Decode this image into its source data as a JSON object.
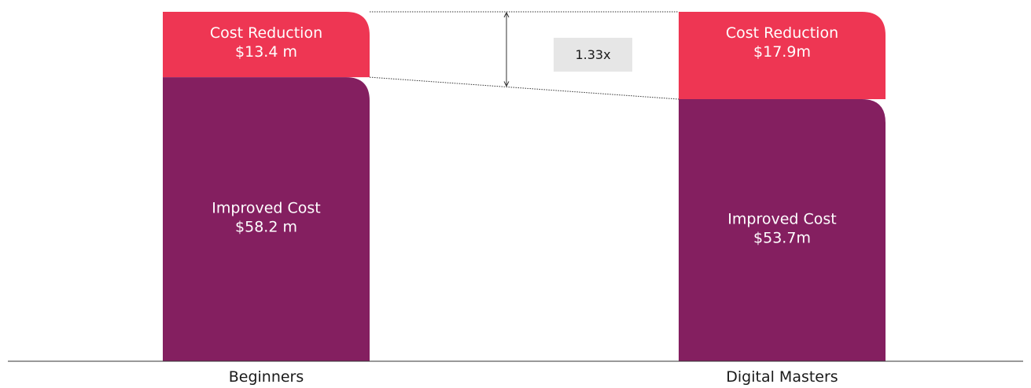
{
  "chart_data": {
    "type": "bar",
    "stacked": true,
    "categories": [
      "Beginners",
      "Digital Masters"
    ],
    "series": [
      {
        "name": "Improved Cost",
        "values": [
          58.2,
          53.7
        ],
        "labels": [
          "$58.2 m",
          "$53.7m"
        ],
        "color": "#841f60"
      },
      {
        "name": "Cost Reduction",
        "values": [
          13.4,
          17.9
        ],
        "labels": [
          "$13.4 m",
          "$17.9m"
        ],
        "color": "#ee3653"
      }
    ],
    "annotation": {
      "text": "1.33x"
    },
    "ylim": [
      0,
      71.6
    ],
    "grid": false,
    "legend": "none"
  }
}
